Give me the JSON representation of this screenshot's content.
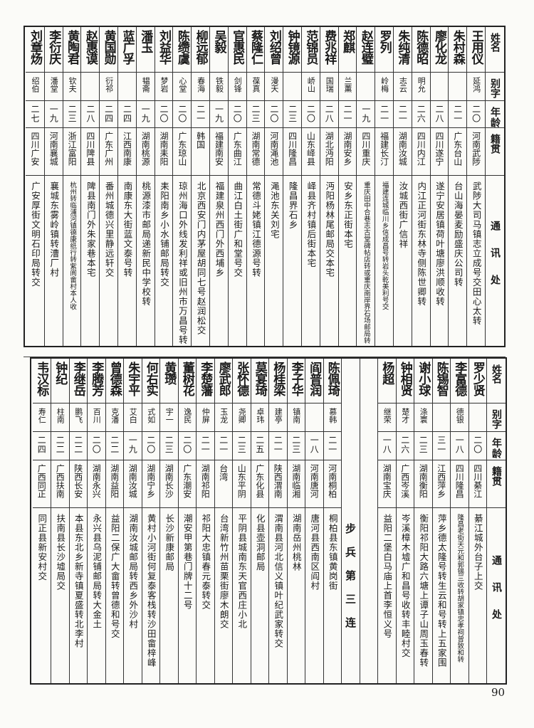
{
  "header": {
    "name": "姓名",
    "alias": "别字",
    "age": "年龄",
    "origin": "籍贯",
    "address": "通讯处"
  },
  "top": {
    "rows": [
      {
        "name": "王用仪",
        "alias": "延鸿",
        "age": "二〇",
        "origin": "河南武陟",
        "address": "武陟大司马镇志立成号交田心太转"
      },
      {
        "name": "朱村森",
        "alias": "",
        "age": "二一",
        "origin": "广东台山",
        "address": "台山海晏麦励盛庆公司转"
      },
      {
        "name": "廖化龙",
        "alias": "",
        "age": "二八",
        "origin": "四川遂宁",
        "address": "遂宁安居镇荷叶塘廖洪顺收转"
      },
      {
        "name": "陈德昭",
        "alias": "明允",
        "age": "二六",
        "origin": "四川内江",
        "address": "内江正河街东林寺侧陈世卿转"
      },
      {
        "name": "朱纯清",
        "alias": "志云",
        "age": "二一",
        "origin": "湖南汝城",
        "address": "汝城西街广信祥"
      },
      {
        "name": "罗列",
        "alias": "岭梅",
        "age": "二一",
        "origin": "福建长汀",
        "address": "福建连城临川乡信成昌号转岩头乾美利号交",
        "small": true
      },
      {
        "name": "赵连璧",
        "alias": "",
        "age": "一九",
        "origin": "四川重庆",
        "address": "重庆田中合巷志古堂碑帖店转或重庆南岸界石场邮局转",
        "small": true
      },
      {
        "name": "郑麒",
        "alias": "兰薰",
        "age": "二一",
        "origin": "湖南安乡",
        "address": "安乡东正街本宅"
      },
      {
        "name": "费兆祥",
        "alias": "国瑞",
        "age": "二八",
        "origin": "湖北沔阳",
        "address": "沔阳杨林尾邮局交本宅"
      },
      {
        "name": "范锦员",
        "alias": "峤山",
        "age": "二〇",
        "origin": "山东峄县",
        "address": "峄县齐村镇后街本宅"
      },
      {
        "name": "钟镜源",
        "alias": "",
        "age": "二三",
        "origin": "四川隆昌",
        "address": "隆昌界石乡"
      },
      {
        "name": "刘绍曾",
        "alias": "漫天",
        "age": "二〇",
        "origin": "河南渑池",
        "address": "渑池东关刘宅"
      },
      {
        "name": "蔡隆仁",
        "alias": "葆真",
        "age": "二三",
        "origin": "湖南常德",
        "address": "常德斗姥镇江德源号转"
      },
      {
        "name": "官惠民",
        "alias": "剑锋",
        "age": "二〇",
        "origin": "广东曲江",
        "address": "曲江白土街广和堂号交"
      },
      {
        "name": "吴毅",
        "alias": "铁毅",
        "age": "一九",
        "origin": "福建南安",
        "address": "福建泉州西门外西埔乡"
      },
      {
        "name": "柳远郁",
        "alias": "春海",
        "age": "二一",
        "origin": "韩国",
        "address": "北京西安门内茅屋胡同七号赵润松交"
      },
      {
        "name": "陈缵虞",
        "alias": "心堂",
        "age": "二〇",
        "origin": "广东琼山",
        "address": "琼州海口外线发利祥或旧州市万昌号转"
      },
      {
        "name": "刘益华",
        "alias": "梦岩",
        "age": "二〇",
        "origin": "湖南耒阳",
        "address": "耒阳南乡小水铺邮局转交"
      },
      {
        "name": "潘玉",
        "alias": "韫斋",
        "age": "一九",
        "origin": "湖南桃源",
        "address": "桃源漆市邮局递新民中学校转"
      },
      {
        "name": "蓝广孚",
        "alias": "",
        "age": "二四",
        "origin": "江西南康",
        "address": "南康东大街蓝文泰号转"
      },
      {
        "name": "黄国勋",
        "alias": "衍祁",
        "age": "二四",
        "origin": "广东广州",
        "address": "番州城德兴里静远轩交"
      },
      {
        "name": "赵惠谟",
        "alias": "",
        "age": "二八",
        "origin": "四川陴县",
        "address": "陴县南门外朱家巷本宅"
      },
      {
        "name": "黄陶君",
        "alias": "钦夫",
        "age": "二三",
        "origin": "浙江富阳",
        "address": "杭州转临浦河镇德康纸行转紫阆畲村本人收",
        "small": true
      },
      {
        "name": "李衍庆",
        "alias": "潘堂",
        "age": "一九",
        "origin": "河南襄城",
        "address": "襄城东雾岭镇转漕厂村"
      },
      {
        "name": "刘章炀",
        "alias": "绍伯",
        "age": "二七",
        "origin": "四川广安",
        "address": "广安厚街文明石印局转交"
      }
    ]
  },
  "bottom": {
    "unit": "步兵第三连",
    "rows_right": [
      {
        "name": "罗少贤",
        "alias": "",
        "age": "二〇",
        "origin": "四川綦江",
        "address": "綦江城外台子上交"
      },
      {
        "name": "李富德",
        "alias": "德银",
        "age": "一八",
        "origin": "四川隆昌",
        "address": "隆昌老街天元和郭锡三收转胡家镇忠孝祠曾致和转",
        "small": true
      },
      {
        "name": "陈锡智",
        "alias": "",
        "age": "三一",
        "origin": "江西萍乡",
        "address": "萍乡德太隆号转生云和号转上五家围"
      },
      {
        "name": "谢小球",
        "alias": "涤寰",
        "age": "二三",
        "origin": "湖南衡阳",
        "address": "衡阳祁阳大路六塘上谭子山周玉春转"
      },
      {
        "name": "钟相贤",
        "alias": "楚才",
        "age": "二六",
        "origin": "广西岑溪",
        "address": "岑溪樟木墟广和昌号收转丰睦村交"
      },
      {
        "name": "杨超",
        "alias": "继荣",
        "age": "一八",
        "origin": "湖南宝庆",
        "address": "益阳二堡白马庙上首李恒义号"
      }
    ],
    "rows_left": [
      {
        "name": "陈佩琦",
        "alias": "慕韩",
        "age": "二一",
        "origin": "河南桐柏",
        "address": "桐柏县东镇黄岗街"
      },
      {
        "name": "阎普润",
        "alias": "",
        "age": "一八",
        "origin": "河南唐河",
        "address": "唐河县西南区阎村"
      },
      {
        "name": "李子华",
        "alias": "镇南",
        "age": "二三",
        "origin": "湖南临湘",
        "address": "湖南岳州桃林"
      },
      {
        "name": "杨桂梁",
        "alias": "建亭",
        "age": "二一",
        "origin": "陕西渭南",
        "address": "渭南县河北信义镇叶纪武家转交"
      },
      {
        "name": "莫宴琦",
        "alias": "卓玮",
        "age": "二五",
        "origin": "广东化县",
        "address": "化县壶洞邮局"
      },
      {
        "name": "张怀德",
        "alias": "尧卿",
        "age": "二三",
        "origin": "山东平阴",
        "address": "平阴县城南东天官西庄小北"
      },
      {
        "name": "廖武郎",
        "alias": "玉龙",
        "age": "二一",
        "origin": "台湾",
        "address": "台湾新竹州苗栗街廖木朗交"
      },
      {
        "name": "李楚藩",
        "alias": "仲屏",
        "age": "二一",
        "origin": "湖南祁阳",
        "address": "祁阳大忠镇春元泰转交"
      },
      {
        "name": "董树花",
        "alias": "逸民",
        "age": "二〇",
        "origin": "广东潮安",
        "address": "潮安甲第巷门牌十二号"
      },
      {
        "name": "黄瓒",
        "alias": "宇一",
        "age": "二三",
        "origin": "湖南长沙",
        "address": "长沙新康邮局"
      },
      {
        "name": "何右实",
        "alias": "式如",
        "age": "二〇",
        "origin": "湖南宁乡",
        "address": "黄村小河街何复泰客栈转沙田畲梓峰"
      },
      {
        "name": "朱宇平",
        "alias": "艾白",
        "age": "一九",
        "origin": "湖南汝城",
        "address": "湖南汝城邮局转西乡外沙村"
      },
      {
        "name": "曾德森",
        "alias": "克潘",
        "age": "二二",
        "origin": "湖南益阳",
        "address": "益阳二保广大畲转曾德和号交"
      },
      {
        "name": "李腾芳",
        "alias": "百川",
        "age": "二〇",
        "origin": "湖南永兴",
        "address": "永兴县乌泥铺邮局转大金土"
      },
      {
        "name": "李继岳",
        "alias": "鹏飞",
        "age": "二二",
        "origin": "陕西长安",
        "address": "本县东北乡新寺镇夏盛转北李村"
      },
      {
        "name": "钟纪",
        "alias": "柱南",
        "age": "二二",
        "origin": "广西扶南",
        "address": "扶南县长沙墟局交"
      },
      {
        "name": "韦汉标",
        "alias": "寿仁",
        "age": "二四",
        "origin": "广西同正",
        "address": "同正县新安村交"
      }
    ]
  },
  "page_number": "90"
}
